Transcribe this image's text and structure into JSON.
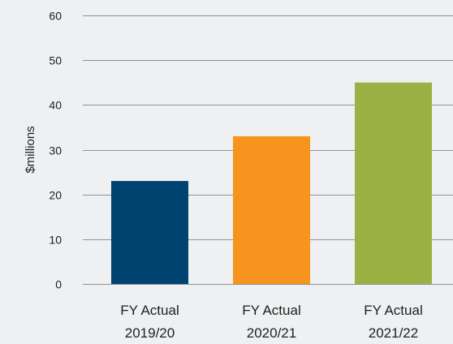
{
  "chart_data": {
    "type": "bar",
    "categories": [
      [
        "FY Actual",
        "2019/20"
      ],
      [
        "FY Actual",
        "2020/21"
      ],
      [
        "FY Actual",
        "2021/22"
      ]
    ],
    "values": [
      23,
      33,
      45
    ],
    "colors": [
      "#004270",
      "#f7941d",
      "#9bb144"
    ],
    "ylabel": "$millions",
    "ylim": [
      0,
      60
    ],
    "yticks": [
      0,
      10,
      20,
      30,
      40,
      50,
      60
    ],
    "grid": true
  }
}
